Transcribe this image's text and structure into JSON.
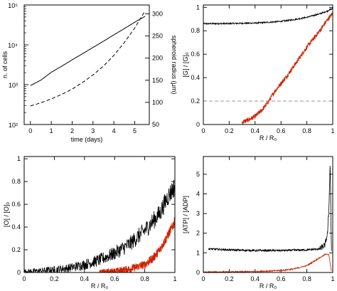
{
  "chart_data": [
    {
      "type": "line",
      "xlabel": "time  (days)",
      "ylabel": "n. of cells",
      "ylabel_right": "spheroid radius (μm)",
      "x_ticks": [
        "0",
        "1",
        "2",
        "3",
        "4",
        "5"
      ],
      "y_ticks_left": [
        "10²",
        "10³",
        "10⁴",
        "10⁵"
      ],
      "y_ticks_right": [
        "50",
        "100",
        "150",
        "200",
        "250",
        "300"
      ],
      "xlim": [
        -0.3,
        5.7
      ],
      "ylim_left": [
        100,
        100000
      ],
      "yscale_left": "log",
      "ylim_right": [
        50,
        320
      ],
      "series": [
        {
          "axis": "left",
          "style": "solid",
          "color": "#000000",
          "x": [
            0,
            0.5,
            1,
            1.5,
            2,
            2.5,
            3,
            3.5,
            4,
            4.5,
            5,
            5.5
          ],
          "y": [
            950,
            1300,
            2050,
            2900,
            4200,
            6000,
            8600,
            12300,
            17800,
            25500,
            37000,
            52000
          ]
        },
        {
          "axis": "right",
          "style": "dashed",
          "color": "#000000",
          "x": [
            0,
            0.5,
            1,
            1.5,
            2,
            2.5,
            3,
            3.5,
            4,
            4.5,
            5,
            5.5
          ],
          "y": [
            92,
            99,
            108,
            118,
            130,
            145,
            162,
            182,
            206,
            235,
            268,
            307
          ]
        }
      ]
    },
    {
      "type": "line",
      "xlabel": "R / R₀",
      "ylabel": "[G] / [G]₀",
      "x_ticks": [
        "0",
        "0.2",
        "0.4",
        "0.6",
        "0.8",
        "1"
      ],
      "y_ticks": [
        "0",
        "0.2",
        "0.4",
        "0.6",
        "0.8",
        "1"
      ],
      "xlim": [
        0,
        1
      ],
      "ylim": [
        0,
        1.02
      ],
      "hline": 0.2,
      "series": [
        {
          "style": "solid",
          "color": "#000000",
          "noise": 0.006,
          "x": [
            0,
            0.2,
            0.4,
            0.5,
            0.6,
            0.7,
            0.8,
            0.9,
            0.95,
            1
          ],
          "y": [
            0.86,
            0.862,
            0.866,
            0.872,
            0.88,
            0.895,
            0.915,
            0.945,
            0.965,
            0.99
          ]
        },
        {
          "style": "solid",
          "color": "#cc2200",
          "noise": 0.02,
          "x": [
            0.3,
            0.35,
            0.4,
            0.45,
            0.5,
            0.55,
            0.6,
            0.65,
            0.7,
            0.75,
            0.8,
            0.85,
            0.9,
            0.95,
            1
          ],
          "y": [
            0.02,
            0.04,
            0.07,
            0.12,
            0.19,
            0.28,
            0.35,
            0.42,
            0.5,
            0.58,
            0.66,
            0.73,
            0.8,
            0.88,
            0.95
          ]
        }
      ]
    },
    {
      "type": "line",
      "xlabel": "R / R₀",
      "ylabel": "[O] / [O]₀",
      "x_ticks": [
        "0",
        "0.2",
        "0.4",
        "0.6",
        "0.8",
        "1"
      ],
      "y_ticks": [
        "0",
        "0.2",
        "0.4",
        "0.6",
        "0.8",
        "1"
      ],
      "xlim": [
        0,
        1
      ],
      "ylim": [
        0,
        1.02
      ],
      "series": [
        {
          "style": "solid",
          "color": "#000000",
          "noise": 0.06,
          "x": [
            0,
            0.1,
            0.2,
            0.3,
            0.4,
            0.5,
            0.6,
            0.7,
            0.8,
            0.9,
            0.95,
            1
          ],
          "y": [
            0.01,
            0.015,
            0.025,
            0.04,
            0.07,
            0.11,
            0.17,
            0.25,
            0.37,
            0.52,
            0.66,
            0.76
          ]
        },
        {
          "style": "solid",
          "color": "#cc2200",
          "noise": 0.03,
          "x": [
            0.5,
            0.6,
            0.7,
            0.8,
            0.85,
            0.9,
            0.95,
            1
          ],
          "y": [
            0,
            0.01,
            0.03,
            0.07,
            0.12,
            0.2,
            0.32,
            0.45
          ]
        }
      ]
    },
    {
      "type": "line",
      "xlabel": "R / R₀",
      "ylabel": "[ATP] / [ADP]",
      "x_ticks": [
        "0",
        "0.2",
        "0.4",
        "0.6",
        "0.8",
        "1"
      ],
      "y_ticks": [
        "0",
        "1",
        "2",
        "3",
        "4",
        "5"
      ],
      "xlim": [
        0,
        1
      ],
      "ylim": [
        0,
        5.9
      ],
      "series": [
        {
          "style": "solid",
          "color": "#000000",
          "noise": 0.05,
          "x": [
            0.04,
            0.2,
            0.4,
            0.6,
            0.8,
            0.9,
            0.94,
            0.96,
            0.97,
            0.98,
            0.99
          ],
          "y": [
            1.2,
            1.15,
            1.12,
            1.12,
            1.15,
            1.2,
            1.4,
            2.0,
            3.2,
            5.6,
            1.1
          ]
        },
        {
          "style": "solid",
          "color": "#cc2200",
          "noise": 0.03,
          "x": [
            0,
            0.2,
            0.4,
            0.6,
            0.7,
            0.8,
            0.9,
            0.95,
            0.97,
            0.99
          ],
          "y": [
            0.02,
            0.03,
            0.05,
            0.1,
            0.18,
            0.35,
            0.75,
            0.95,
            0.9,
            0.05
          ]
        }
      ]
    }
  ]
}
